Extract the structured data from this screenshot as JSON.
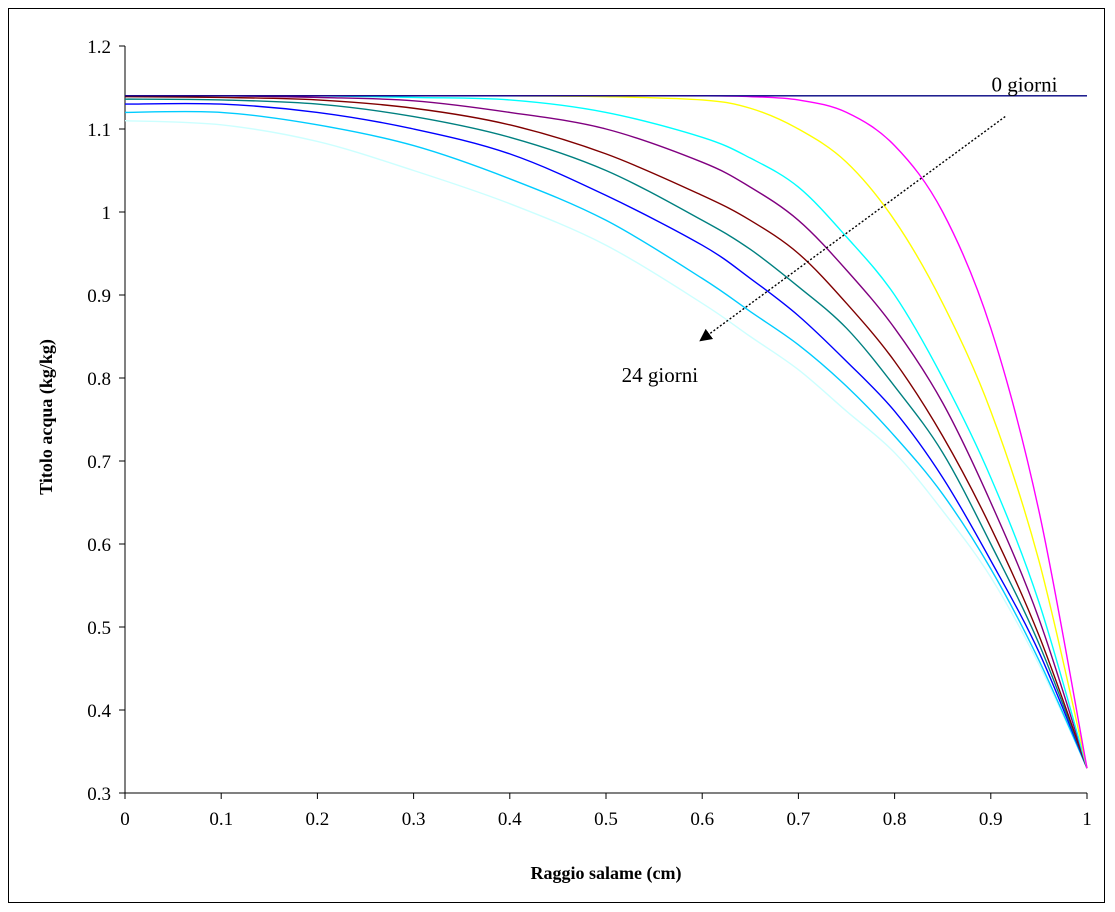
{
  "chart_data": {
    "type": "line",
    "xlabel": "Raggio salame (cm)",
    "ylabel": "Titolo acqua (kg/kg)",
    "xlim": [
      0,
      1
    ],
    "ylim": [
      0.3,
      1.2
    ],
    "x_ticks": [
      "0",
      "0.1",
      "0.2",
      "0.3",
      "0.4",
      "0.5",
      "0.6",
      "0.7",
      "0.8",
      "0.9",
      "1"
    ],
    "y_ticks": [
      "0.3",
      "0.4",
      "0.5",
      "0.6",
      "0.7",
      "0.8",
      "0.9",
      "1",
      "1.1",
      "1.2"
    ],
    "grid": false,
    "legend": "none",
    "x": [
      0,
      0.1,
      0.2,
      0.3,
      0.4,
      0.5,
      0.6,
      0.65,
      0.7,
      0.75,
      0.8,
      0.85,
      0.9,
      0.95,
      1.0
    ],
    "series": [
      {
        "color": "#000080",
        "values": [
          1.14,
          1.14,
          1.14,
          1.14,
          1.14,
          1.14,
          1.14,
          1.14,
          1.14,
          1.14,
          1.14,
          1.14,
          1.14,
          1.14,
          1.14
        ]
      },
      {
        "color": "#ff00ff",
        "values": [
          1.14,
          1.14,
          1.14,
          1.14,
          1.14,
          1.14,
          1.14,
          1.139,
          1.135,
          1.12,
          1.08,
          1.0,
          0.86,
          0.64,
          0.33
        ]
      },
      {
        "color": "#ffff00",
        "values": [
          1.14,
          1.14,
          1.14,
          1.14,
          1.14,
          1.139,
          1.135,
          1.125,
          1.1,
          1.06,
          0.99,
          0.89,
          0.76,
          0.58,
          0.33
        ]
      },
      {
        "color": "#00ffff",
        "values": [
          1.14,
          1.14,
          1.14,
          1.138,
          1.135,
          1.12,
          1.09,
          1.065,
          1.03,
          0.97,
          0.9,
          0.8,
          0.68,
          0.53,
          0.33
        ]
      },
      {
        "color": "#800080",
        "values": [
          1.14,
          1.14,
          1.138,
          1.134,
          1.12,
          1.1,
          1.06,
          1.03,
          0.99,
          0.93,
          0.86,
          0.77,
          0.65,
          0.51,
          0.33
        ]
      },
      {
        "color": "#800000",
        "values": [
          1.139,
          1.138,
          1.135,
          1.125,
          1.105,
          1.07,
          1.02,
          0.99,
          0.95,
          0.89,
          0.82,
          0.73,
          0.62,
          0.49,
          0.33
        ]
      },
      {
        "color": "#008080",
        "values": [
          1.136,
          1.135,
          1.13,
          1.115,
          1.09,
          1.05,
          0.99,
          0.955,
          0.91,
          0.86,
          0.79,
          0.71,
          0.6,
          0.48,
          0.33
        ]
      },
      {
        "color": "#0000ff",
        "values": [
          1.13,
          1.13,
          1.12,
          1.1,
          1.07,
          1.02,
          0.96,
          0.92,
          0.875,
          0.82,
          0.76,
          0.68,
          0.58,
          0.47,
          0.33
        ]
      },
      {
        "color": "#00ccff",
        "values": [
          1.12,
          1.12,
          1.105,
          1.08,
          1.04,
          0.99,
          0.92,
          0.88,
          0.84,
          0.79,
          0.73,
          0.66,
          0.57,
          0.46,
          0.33
        ]
      },
      {
        "color": "#ccffff",
        "values": [
          1.11,
          1.105,
          1.085,
          1.05,
          1.01,
          0.96,
          0.89,
          0.85,
          0.81,
          0.76,
          0.71,
          0.64,
          0.56,
          0.455,
          0.33
        ]
      }
    ],
    "annotations": [
      {
        "text": "0 giorni",
        "x": 0.935,
        "y": 1.145
      },
      {
        "text": "24 giorni",
        "x": 0.556,
        "y": 0.795
      }
    ],
    "arrow": {
      "from": [
        0.915,
        1.115
      ],
      "to": [
        0.598,
        0.845
      ]
    }
  }
}
